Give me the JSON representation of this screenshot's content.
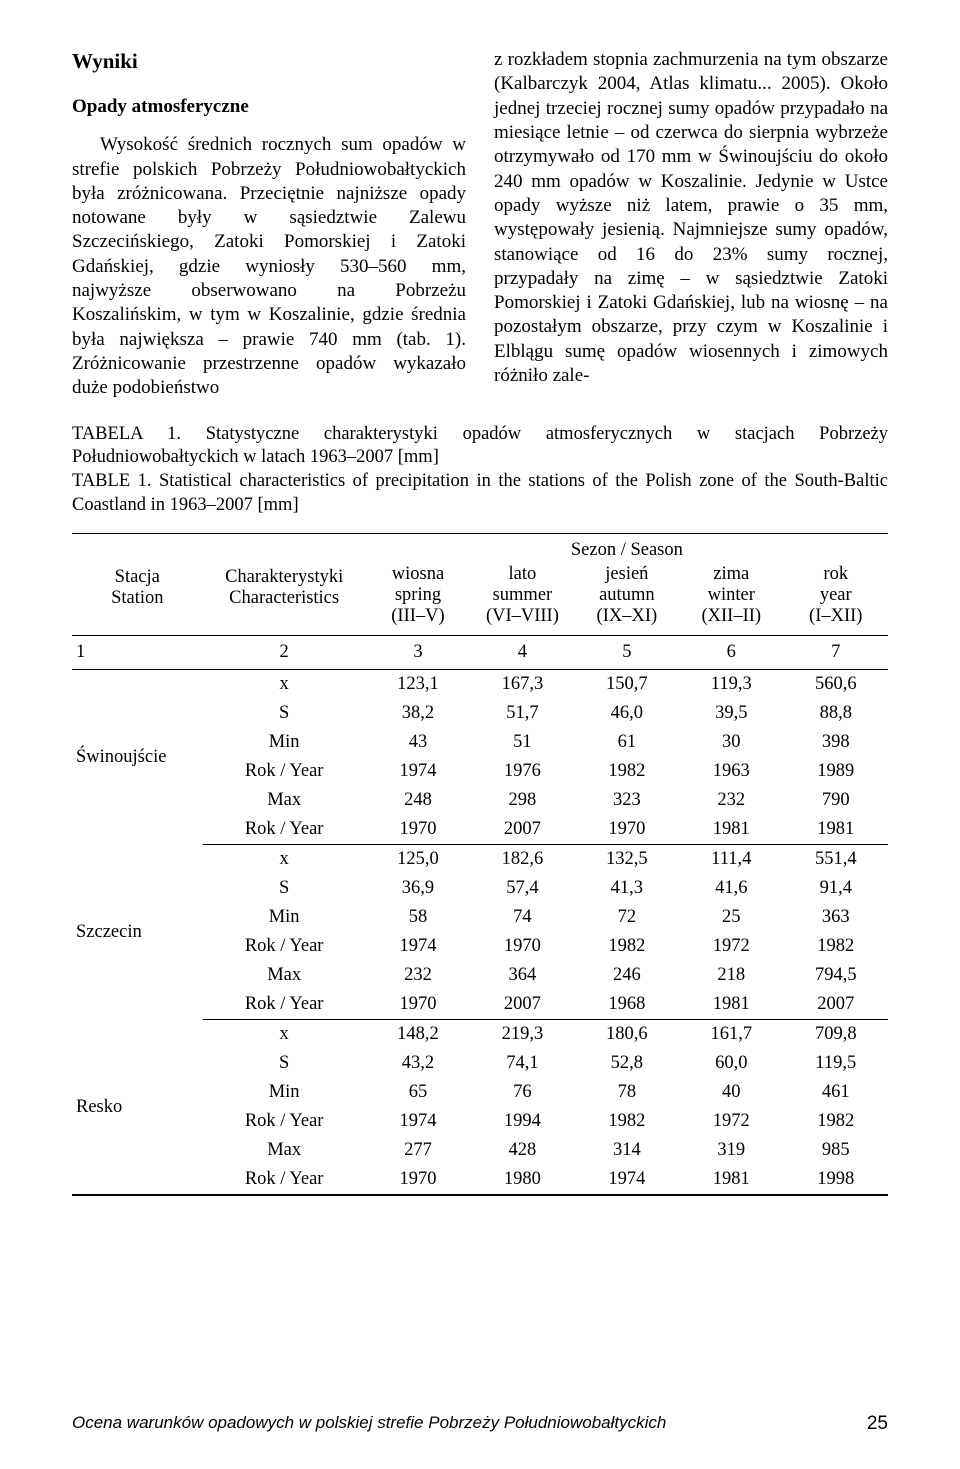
{
  "headings": {
    "wyniki": "Wyniki",
    "opady": "Opady atmosferyczne"
  },
  "para_left": "Wysokość średnich rocznych sum opadów w strefie polskich Pobrzeży Południowobałtyckich była zróżnicowana. Przeciętnie najniższe opady notowane były w sąsiedztwie Zalewu Szczecińskiego, Zatoki Pomorskiej i Zatoki Gdańskiej, gdzie wyniosły 530–560 mm, najwyższe obserwowano na Pobrzeżu Koszalińskim, w tym w Koszalinie, gdzie średnia była największa – prawie 740 mm (tab. 1). Zróżnicowanie przestrzenne opadów wykazało duże podobieństwo",
  "para_right": "z rozkładem stopnia zachmurzenia na tym obszarze (Kalbarczyk 2004, Atlas klimatu... 2005). Około jednej trzeciej rocznej sumy opadów przypadało na miesiące letnie – od czerwca do sierpnia wybrzeże otrzymywało od 170 mm w Świnoujściu do około 240 mm opadów w Koszalinie. Jedynie w Ustce opady wyższe niż latem, prawie o 35 mm, występowały jesienią. Najmniejsze sumy opadów, stanowiące od 16 do 23% sumy rocznej, przypadały na zimę – w sąsiedztwie Zatoki Pomorskiej i Zatoki Gdańskiej, lub na wiosnę – na pozostałym obszarze, przy czym w Koszalinie i Elblągu sumę opadów wiosennych i zimowych różniło zale-",
  "caption": {
    "pl": "TABELA 1. Statystyczne charakterystyki opadów atmosferycznych w stacjach Pobrzeży Południowobałtyckich w latach 1963–2007 [mm]",
    "en": "TABLE 1. Statistical characteristics of precipitation in the stations of the Polish zone of the South-Baltic Coastland in 1963–2007 [mm]"
  },
  "table": {
    "header": {
      "stacja1": "Stacja",
      "stacja2": "Station",
      "char1": "Charakterystyki",
      "char2": "Characteristics",
      "season": "Sezon / Season",
      "cols": [
        {
          "l1": "wiosna",
          "l2": "spring",
          "l3": "(III–V)"
        },
        {
          "l1": "lato",
          "l2": "summer",
          "l3": "(VI–VIII)"
        },
        {
          "l1": "jesień",
          "l2": "autumn",
          "l3": "(IX–XI)"
        },
        {
          "l1": "zima",
          "l2": "winter",
          "l3": "(XII–II)"
        },
        {
          "l1": "rok",
          "l2": "year",
          "l3": "(I–XII)"
        }
      ]
    },
    "numrow": [
      "1",
      "2",
      "3",
      "4",
      "5",
      "6",
      "7"
    ],
    "charlabels": [
      "x",
      "S",
      "Min",
      "Rok / Year",
      "Max",
      "Rok / Year"
    ],
    "stations": [
      {
        "name": "Świnoujście",
        "rows": [
          [
            "123,1",
            "167,3",
            "150,7",
            "119,3",
            "560,6"
          ],
          [
            "38,2",
            "51,7",
            "46,0",
            "39,5",
            "88,8"
          ],
          [
            "43",
            "51",
            "61",
            "30",
            "398"
          ],
          [
            "1974",
            "1976",
            "1982",
            "1963",
            "1989"
          ],
          [
            "248",
            "298",
            "323",
            "232",
            "790"
          ],
          [
            "1970",
            "2007",
            "1970",
            "1981",
            "1981"
          ]
        ]
      },
      {
        "name": "Szczecin",
        "rows": [
          [
            "125,0",
            "182,6",
            "132,5",
            "111,4",
            "551,4"
          ],
          [
            "36,9",
            "57,4",
            "41,3",
            "41,6",
            "91,4"
          ],
          [
            "58",
            "74",
            "72",
            "25",
            "363"
          ],
          [
            "1974",
            "1970",
            "1982",
            "1972",
            "1982"
          ],
          [
            "232",
            "364",
            "246",
            "218",
            "794,5"
          ],
          [
            "1970",
            "2007",
            "1968",
            "1981",
            "2007"
          ]
        ]
      },
      {
        "name": "Resko",
        "rows": [
          [
            "148,2",
            "219,3",
            "180,6",
            "161,7",
            "709,8"
          ],
          [
            "43,2",
            "74,1",
            "52,8",
            "60,0",
            "119,5"
          ],
          [
            "65",
            "76",
            "78",
            "40",
            "461"
          ],
          [
            "1974",
            "1994",
            "1982",
            "1972",
            "1982"
          ],
          [
            "277",
            "428",
            "314",
            "319",
            "985"
          ],
          [
            "1970",
            "1980",
            "1974",
            "1981",
            "1998"
          ]
        ]
      }
    ]
  },
  "footer": {
    "title": "Ocena warunków opadowych w polskiej strefie Pobrzeży Południowobałtyckich",
    "page": "25"
  }
}
